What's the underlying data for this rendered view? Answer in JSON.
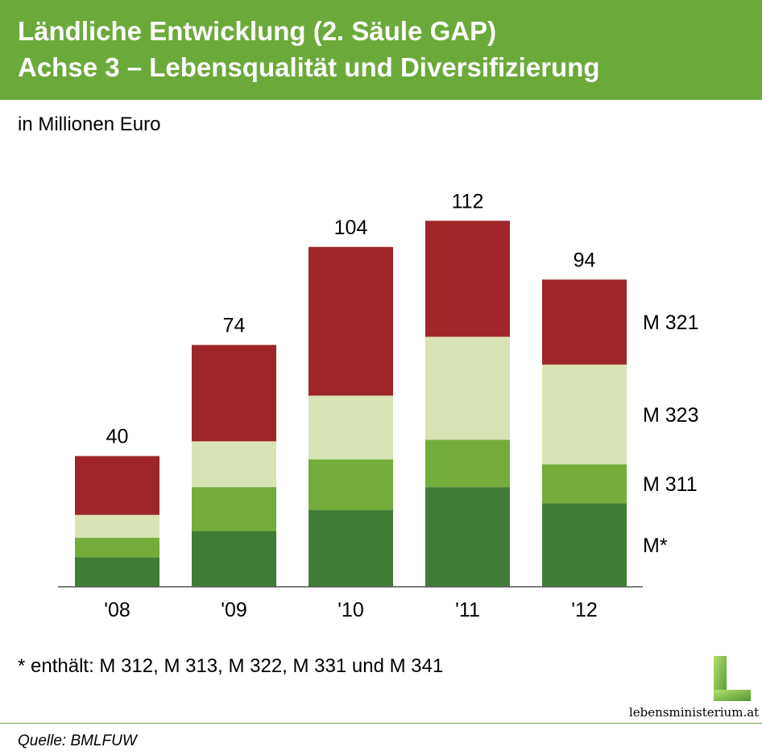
{
  "header": {
    "title_line1": "Ländliche Entwicklung (2. Säule GAP)",
    "title_line2": "Achse 3 – Lebensqualität und Diversifizierung",
    "background": "#6aaa3a"
  },
  "unit_label": "in Millionen Euro",
  "footnote": "* enthält: M 312, M 313, M 322, M 331 und M 341",
  "source": "Quelle: BMLFUW",
  "logo": {
    "text": "lebensministerium.at",
    "icon": "L-logo-icon"
  },
  "chart_data": {
    "type": "bar",
    "stacked": true,
    "categories": [
      "'08",
      "'09",
      "'10",
      "'11",
      "'12"
    ],
    "totals": [
      40,
      74,
      104,
      112,
      94
    ],
    "series": [
      {
        "name": "M*",
        "color": "#3f7d36",
        "values": [
          9,
          17,
          23.5,
          30.5,
          25.5
        ]
      },
      {
        "name": "M 311",
        "color": "#73ac3a",
        "values": [
          6,
          13.5,
          15.5,
          14.5,
          12
        ]
      },
      {
        "name": "M 323",
        "color": "#d8e4b3",
        "values": [
          7,
          14,
          19.5,
          31.5,
          30.5
        ]
      },
      {
        "name": "M 321",
        "color": "#9e2628",
        "values": [
          18,
          29.5,
          45.5,
          35.5,
          26
        ]
      }
    ],
    "legend_position": "right",
    "ylim": [
      0,
      115
    ],
    "grid": false
  }
}
